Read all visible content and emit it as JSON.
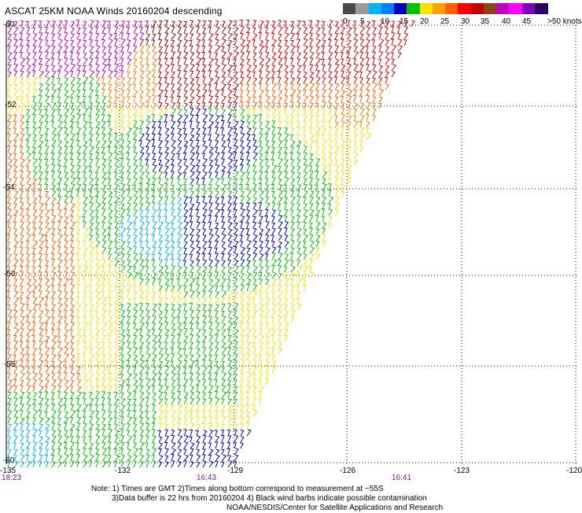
{
  "title": "ASCAT 25KM NOAA Winds 20160204 descending",
  "legend": {
    "colors": [
      "#4a4a4a",
      "#9a9a9a",
      "#00b4ff",
      "#0080ff",
      "#0000c0",
      "#00c000",
      "#ffe000",
      "#ffa000",
      "#ff6000",
      "#ff0000",
      "#c00000",
      "#8b4513",
      "#c000c0",
      "#ff00ff",
      "#8000c0",
      "#300060"
    ],
    "labels": [
      "0",
      "5",
      "10",
      "15",
      "20",
      "25",
      "30",
      "35",
      "40",
      "45",
      ">50 knots"
    ]
  },
  "map": {
    "lat_labels": [
      "-50",
      "-52",
      "-54",
      "-56",
      "-58",
      "-60"
    ],
    "lon_labels": [
      "-135",
      "-132",
      "-129",
      "-126",
      "-123",
      "-120"
    ],
    "time_labels": [
      "18:23",
      "16:43",
      "16:41"
    ]
  },
  "notes": [
    "Note: 1) Times are GMT 2)Times along bottom correspond to measurement at ~55S",
    "3)Data buffer is 22 hrs from 20160204 4) Black wind barbs indicate possible contamination",
    "NOAA/NESDIS/Center for Satellite Applications and Research"
  ],
  "wind_regions": [
    {
      "speed_class": "45+",
      "color": "#c000c0"
    },
    {
      "speed_class": "30-35",
      "color": "#ff0000"
    },
    {
      "speed_class": "25-30",
      "color": "#ff6000"
    },
    {
      "speed_class": "20-25",
      "color": "#ffe000"
    },
    {
      "speed_class": "15-20",
      "color": "#00c000"
    },
    {
      "speed_class": "10-15",
      "color": "#0000c0"
    },
    {
      "speed_class": "5-10",
      "color": "#00b4ff"
    }
  ]
}
